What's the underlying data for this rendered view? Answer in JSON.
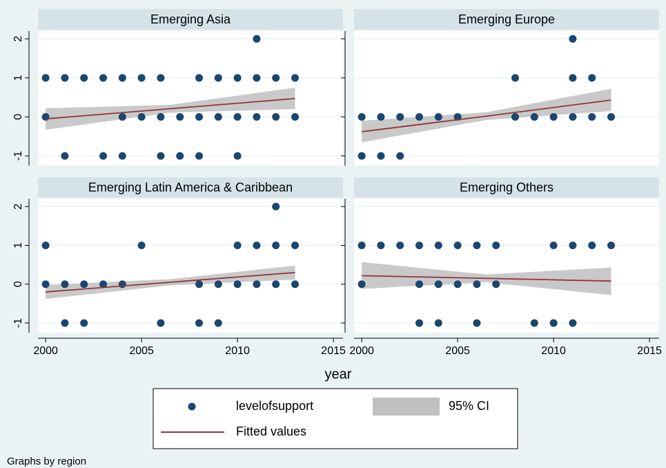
{
  "chart_data": [
    {
      "type": "scatter",
      "title": "Emerging Asia",
      "points": {
        "x": [
          2000,
          2001,
          2002,
          2003,
          2004,
          2005,
          2006,
          2008,
          2009,
          2010,
          2011,
          2012,
          2013,
          2000,
          2004,
          2005,
          2006,
          2007,
          2008,
          2009,
          2010,
          2011,
          2012,
          2013,
          2001,
          2003,
          2004,
          2006,
          2007,
          2008,
          2010,
          2011
        ],
        "y": [
          1,
          1,
          1,
          1,
          1,
          1,
          1,
          1,
          1,
          1,
          1,
          1,
          1,
          0,
          0,
          0,
          0,
          0,
          0,
          0,
          0,
          0,
          0,
          0,
          -1,
          -1,
          -1,
          -1,
          -1,
          -1,
          -1,
          2
        ]
      },
      "fit": {
        "x": [
          2000,
          2006.5,
          2013
        ],
        "values": [
          -0.05,
          0.21,
          0.47
        ],
        "lower": [
          -0.33,
          0.11,
          0.2
        ],
        "upper": [
          0.22,
          0.31,
          0.75
        ]
      }
    },
    {
      "type": "scatter",
      "title": "Emerging Europe",
      "points": {
        "x": [
          2000,
          2001,
          2002,
          2003,
          2004,
          2005,
          2008,
          2009,
          2010,
          2011,
          2012,
          2013,
          2000,
          2001,
          2002,
          2008,
          2011,
          2012,
          2011
        ],
        "y": [
          0,
          0,
          0,
          0,
          0,
          0,
          0,
          0,
          0,
          0,
          0,
          0,
          -1,
          -1,
          -1,
          1,
          1,
          1,
          2
        ]
      },
      "fit": {
        "x": [
          2000,
          2006.5,
          2013
        ],
        "values": [
          -0.38,
          0.02,
          0.43
        ],
        "lower": [
          -0.65,
          -0.08,
          0.15
        ],
        "upper": [
          -0.1,
          0.12,
          0.72
        ]
      }
    },
    {
      "type": "scatter",
      "title": "Emerging Latin America & Caribbean",
      "points": {
        "x": [
          2000,
          2005,
          2010,
          2011,
          2012,
          2013,
          2000,
          2001,
          2002,
          2003,
          2004,
          2008,
          2009,
          2010,
          2011,
          2012,
          2013,
          2001,
          2002,
          2006,
          2008,
          2009,
          2012
        ],
        "y": [
          1,
          1,
          1,
          1,
          1,
          1,
          0,
          0,
          0,
          0,
          0,
          0,
          0,
          0,
          0,
          0,
          0,
          -1,
          -1,
          -1,
          -1,
          -1,
          2
        ]
      },
      "fit": {
        "x": [
          2000,
          2006.5,
          2013
        ],
        "values": [
          -0.2,
          0.05,
          0.3
        ],
        "lower": [
          -0.38,
          -0.03,
          0.12
        ],
        "upper": [
          -0.02,
          0.13,
          0.48
        ]
      }
    },
    {
      "type": "scatter",
      "title": "Emerging Others",
      "points": {
        "x": [
          2000,
          2001,
          2002,
          2003,
          2004,
          2005,
          2006,
          2007,
          2010,
          2011,
          2012,
          2013,
          2000,
          2003,
          2004,
          2005,
          2006,
          2007,
          2003,
          2004,
          2006,
          2009,
          2010,
          2011
        ],
        "y": [
          1,
          1,
          1,
          1,
          1,
          1,
          1,
          1,
          1,
          1,
          1,
          1,
          0,
          0,
          0,
          0,
          0,
          0,
          -1,
          -1,
          -1,
          -1,
          -1,
          -1
        ]
      },
      "fit": {
        "x": [
          2000,
          2006.5,
          2013
        ],
        "values": [
          0.22,
          0.15,
          0.08
        ],
        "lower": [
          -0.12,
          0.05,
          -0.28
        ],
        "upper": [
          0.57,
          0.25,
          0.43
        ]
      }
    }
  ],
  "axes": {
    "xlim": [
      1999.6,
      2015.5
    ],
    "xticks": [
      2000,
      2005,
      2010,
      2015
    ],
    "ylim": [
      -1.25,
      2.2
    ],
    "yticks": [
      -1,
      0,
      1,
      2
    ],
    "xlabel": "year",
    "grid": true
  },
  "legend": {
    "points": {
      "name": "levelofsupport",
      "color": "#1a476f"
    },
    "ci": {
      "name": "95% CI",
      "color": "#c0c0c0"
    },
    "fit": {
      "name": "Fitted values",
      "color": "#90353b"
    }
  },
  "note": "Graphs by region"
}
